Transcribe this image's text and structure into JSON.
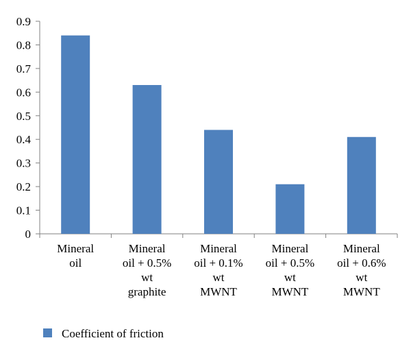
{
  "chart_data": {
    "type": "bar",
    "categories": [
      [
        "Mineral",
        "oil"
      ],
      [
        "Mineral",
        "oil + 0.5%",
        "wt",
        "graphite"
      ],
      [
        "Mineral",
        "oil + 0.1%",
        "wt",
        "MWNT"
      ],
      [
        "Mineral",
        "oil + 0.5%",
        "wt",
        "MWNT"
      ],
      [
        "Mineral",
        "oil + 0.6%",
        "wt",
        "MWNT"
      ]
    ],
    "series": [
      {
        "name": "Coefficient of friction",
        "values": [
          0.84,
          0.63,
          0.44,
          0.21,
          0.41
        ],
        "color": "#4f81bd"
      }
    ],
    "yticks": [
      "0",
      "0.1",
      "0.2",
      "0.3",
      "0.4",
      "0.5",
      "0.6",
      "0.7",
      "0.8",
      "0.9"
    ],
    "ylim": [
      0,
      0.9
    ],
    "grid": false,
    "legend_position": "bottom-left"
  }
}
